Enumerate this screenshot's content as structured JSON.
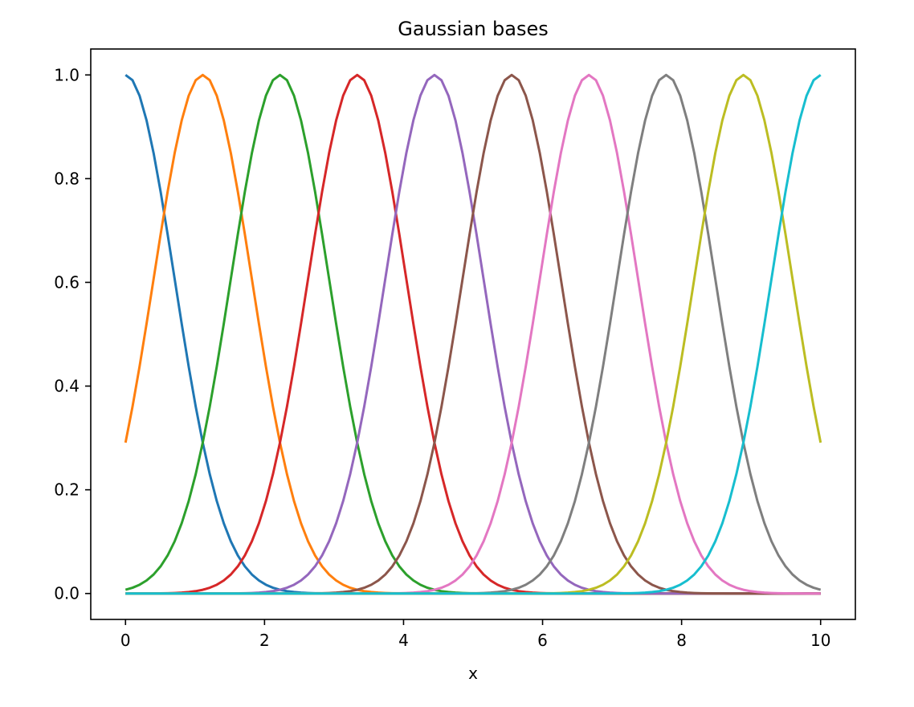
{
  "chart_data": {
    "type": "line",
    "title": "Gaussian bases",
    "xlabel": "x",
    "ylabel": "",
    "xlim": [
      -0.5,
      10.5
    ],
    "ylim": [
      -0.05,
      1.05
    ],
    "xticks": [
      0,
      2,
      4,
      6,
      8,
      10
    ],
    "yticks": [
      0.0,
      0.2,
      0.4,
      0.6,
      0.8,
      1.0
    ],
    "xtick_labels": [
      "0",
      "2",
      "4",
      "6",
      "8",
      "10"
    ],
    "ytick_labels": [
      "0.0",
      "0.2",
      "0.4",
      "0.6",
      "0.8",
      "1.0"
    ],
    "x_range": [
      0,
      10
    ],
    "sample_count": 100,
    "grid": false,
    "legend": "none",
    "series": [
      {
        "center": 0.0,
        "width": 0.707,
        "color": "#1f77b4"
      },
      {
        "center": 1.111,
        "width": 0.707,
        "color": "#ff7f0e"
      },
      {
        "center": 2.222,
        "width": 0.707,
        "color": "#2ca02c"
      },
      {
        "center": 3.333,
        "width": 0.707,
        "color": "#d62728"
      },
      {
        "center": 4.444,
        "width": 0.707,
        "color": "#9467bd"
      },
      {
        "center": 5.556,
        "width": 0.707,
        "color": "#8c564b"
      },
      {
        "center": 6.667,
        "width": 0.707,
        "color": "#e377c2"
      },
      {
        "center": 7.778,
        "width": 0.707,
        "color": "#7f7f7f"
      },
      {
        "center": 8.889,
        "width": 0.707,
        "color": "#bcbd22"
      },
      {
        "center": 10.0,
        "width": 0.707,
        "color": "#17becf"
      }
    ]
  }
}
